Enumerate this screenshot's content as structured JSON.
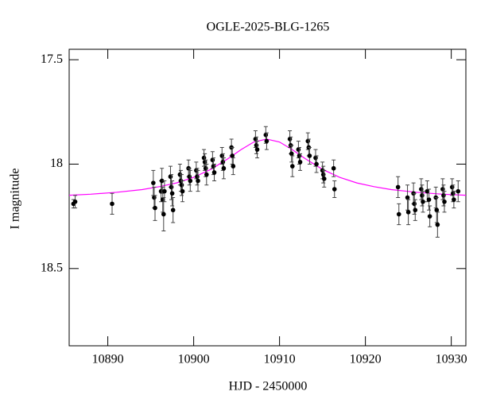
{
  "chart_data": [
    {
      "type": "scatter",
      "title": "OGLE-2025-BLG-1265",
      "xlabel": "HJD - 2450000",
      "ylabel": "I magnitude",
      "xlim": [
        10885.5,
        10931.7
      ],
      "ylim": [
        18.87,
        17.45
      ],
      "xticks": [
        10890,
        10900,
        10910,
        10920,
        10930
      ],
      "yticks": [
        17.5,
        18,
        18.5
      ],
      "color": "#000000",
      "x": [
        10886.0,
        10886.2,
        10890.5,
        10895.3,
        10895.4,
        10895.5,
        10896.2,
        10896.3,
        10896.4,
        10896.5,
        10896.6,
        10897.3,
        10897.4,
        10897.5,
        10897.6,
        10898.4,
        10898.5,
        10898.6,
        10898.7,
        10899.4,
        10899.5,
        10899.6,
        10900.3,
        10900.4,
        10900.5,
        10901.2,
        10901.3,
        10901.4,
        10901.5,
        10902.2,
        10902.3,
        10902.4,
        10903.3,
        10903.4,
        10903.5,
        10904.4,
        10904.5,
        10904.6,
        10907.2,
        10907.3,
        10907.4,
        10908.4,
        10908.5,
        10911.2,
        10911.3,
        10911.4,
        10911.5,
        10912.2,
        10912.3,
        10912.4,
        10913.3,
        10913.4,
        10913.5,
        10914.2,
        10914.3,
        10915.0,
        10915.1,
        10915.2,
        10916.3,
        10916.4,
        10923.8,
        10923.9,
        10924.9,
        10925.0,
        10925.6,
        10925.7,
        10925.8,
        10926.5,
        10926.6,
        10926.7,
        10927.2,
        10927.4,
        10927.5,
        10928.2,
        10928.3,
        10928.4,
        10929.0,
        10929.1,
        10929.2,
        10930.1,
        10930.2,
        10930.3,
        10930.8
      ],
      "values": [
        18.19,
        18.18,
        18.19,
        18.09,
        18.16,
        18.21,
        18.13,
        18.08,
        18.17,
        18.24,
        18.13,
        18.06,
        18.11,
        18.14,
        18.22,
        18.05,
        18.08,
        18.1,
        18.13,
        18.02,
        18.06,
        18.08,
        18.03,
        18.06,
        18.08,
        17.97,
        17.99,
        18.02,
        18.05,
        17.98,
        18.01,
        18.04,
        17.96,
        17.99,
        18.02,
        17.92,
        17.96,
        18.01,
        17.88,
        17.91,
        17.93,
        17.86,
        17.89,
        17.88,
        17.91,
        17.95,
        18.01,
        17.93,
        17.96,
        17.99,
        17.89,
        17.92,
        17.96,
        17.97,
        18.0,
        18.03,
        18.05,
        18.07,
        18.02,
        18.12,
        18.11,
        18.24,
        18.16,
        18.23,
        18.14,
        18.19,
        18.22,
        18.12,
        18.15,
        18.18,
        18.13,
        18.17,
        18.25,
        18.16,
        18.22,
        18.29,
        18.12,
        18.15,
        18.18,
        18.11,
        18.14,
        18.17,
        18.13
      ],
      "errors": [
        0.02,
        0.03,
        0.05,
        0.06,
        0.05,
        0.06,
        0.05,
        0.06,
        0.06,
        0.08,
        0.05,
        0.05,
        0.06,
        0.06,
        0.06,
        0.05,
        0.05,
        0.05,
        0.05,
        0.04,
        0.04,
        0.05,
        0.04,
        0.04,
        0.05,
        0.04,
        0.04,
        0.04,
        0.05,
        0.04,
        0.04,
        0.04,
        0.04,
        0.04,
        0.05,
        0.04,
        0.04,
        0.04,
        0.04,
        0.04,
        0.04,
        0.04,
        0.04,
        0.04,
        0.04,
        0.04,
        0.05,
        0.04,
        0.04,
        0.04,
        0.04,
        0.04,
        0.04,
        0.04,
        0.04,
        0.04,
        0.04,
        0.04,
        0.04,
        0.04,
        0.05,
        0.05,
        0.06,
        0.06,
        0.05,
        0.05,
        0.05,
        0.05,
        0.05,
        0.05,
        0.05,
        0.05,
        0.05,
        0.05,
        0.06,
        0.06,
        0.05,
        0.05,
        0.05,
        0.04,
        0.04,
        0.04,
        0.05
      ]
    },
    {
      "type": "line",
      "color": "#ff00ff",
      "x": [
        10885.5,
        10888,
        10891,
        10894,
        10896,
        10898,
        10900,
        10902,
        10904,
        10905.5,
        10907,
        10908.5,
        10910,
        10911.5,
        10913,
        10915,
        10917,
        10919,
        10921,
        10923,
        10926,
        10929,
        10931.7
      ],
      "values": [
        18.149,
        18.144,
        18.135,
        18.122,
        18.108,
        18.09,
        18.063,
        18.025,
        17.974,
        17.931,
        17.894,
        17.88,
        17.894,
        17.931,
        17.974,
        18.025,
        18.063,
        18.09,
        18.108,
        18.122,
        18.135,
        18.144,
        18.149
      ]
    }
  ]
}
